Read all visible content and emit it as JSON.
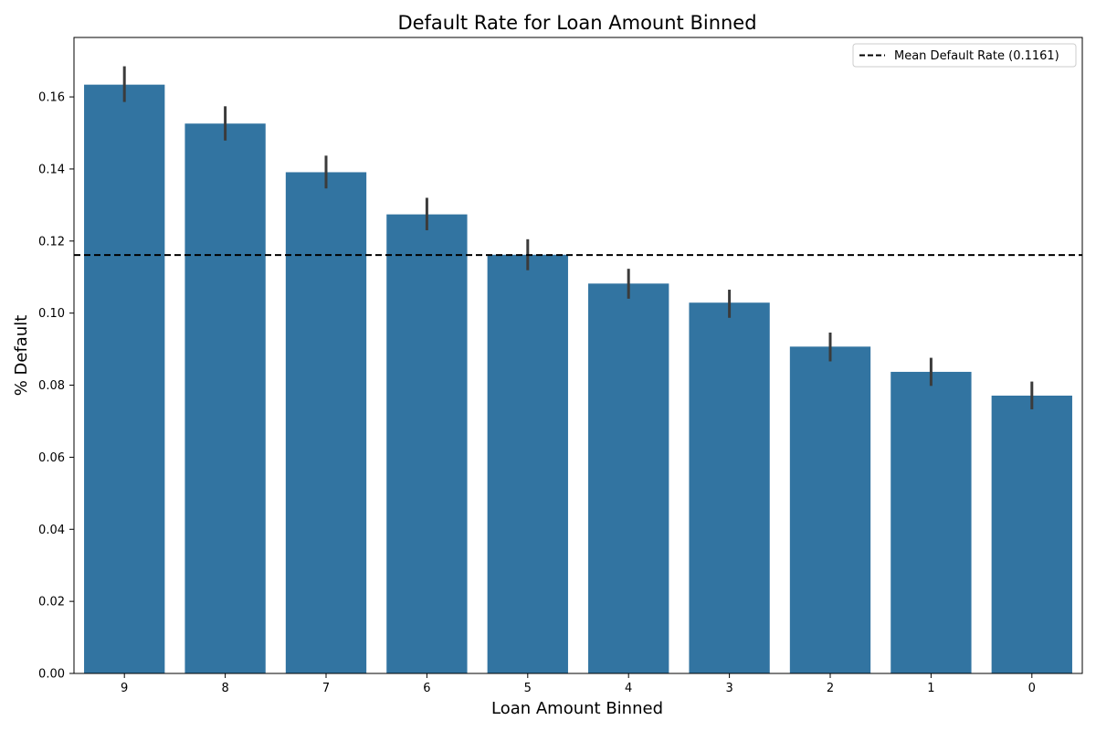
{
  "chart_data": {
    "type": "bar",
    "title": "Default Rate for Loan Amount Binned",
    "xlabel": "Loan Amount Binned",
    "ylabel": "% Default",
    "categories": [
      "9",
      "8",
      "7",
      "6",
      "5",
      "4",
      "3",
      "2",
      "1",
      "0"
    ],
    "values": [
      0.1634,
      0.1526,
      0.1391,
      0.1274,
      0.1162,
      0.1082,
      0.1029,
      0.0907,
      0.0837,
      0.0771
    ],
    "error_low": [
      0.1586,
      0.1479,
      0.1346,
      0.123,
      0.1119,
      0.104,
      0.0987,
      0.0866,
      0.0798,
      0.0733
    ],
    "error_high": [
      0.1685,
      0.1574,
      0.1437,
      0.132,
      0.1205,
      0.1123,
      0.1065,
      0.0946,
      0.0876,
      0.081
    ],
    "ylim": [
      0,
      0.1765
    ],
    "yticks": [
      0.0,
      0.02,
      0.04,
      0.06,
      0.08,
      0.1,
      0.12,
      0.14,
      0.16
    ],
    "ytick_labels": [
      "0.00",
      "0.02",
      "0.04",
      "0.06",
      "0.08",
      "0.10",
      "0.12",
      "0.14",
      "0.16"
    ],
    "mean_line": {
      "value": 0.1161,
      "label": "Mean Default Rate (0.1161)",
      "style": "dashed"
    },
    "grid": false,
    "legend_position": "top-right",
    "colors": {
      "bar": "#3274a1",
      "error_bar": "#3b3b3b",
      "mean_line": "#000000"
    }
  }
}
